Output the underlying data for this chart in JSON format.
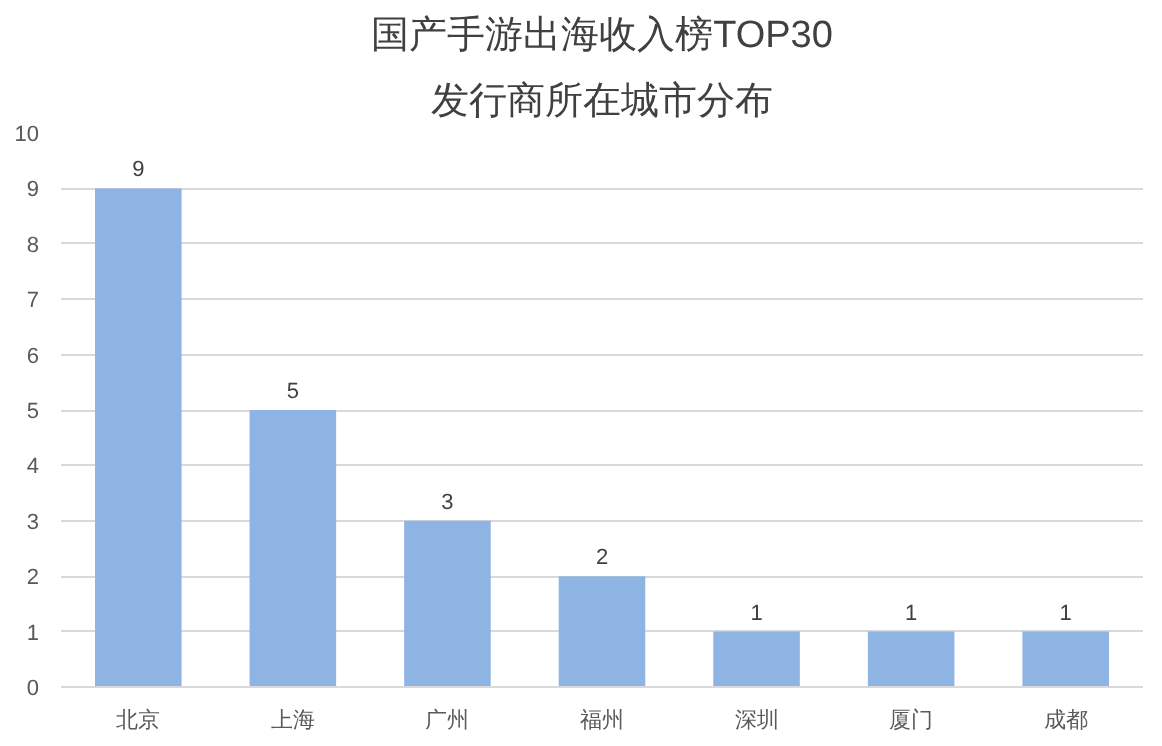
{
  "chart_data": {
    "type": "bar",
    "title": "国产手游出海收入榜TOP30",
    "subtitle": "发行商所在城市分布",
    "categories": [
      "北京",
      "上海",
      "广州",
      "福州",
      "深圳",
      "厦门",
      "成都"
    ],
    "values": [
      9,
      5,
      3,
      2,
      1,
      1,
      1
    ],
    "color": "#8db4e2",
    "ylim": [
      0,
      10
    ],
    "yticks": [
      0,
      1,
      2,
      3,
      4,
      5,
      6,
      7,
      8,
      9,
      10
    ],
    "grid": "y",
    "data_labels": true
  }
}
